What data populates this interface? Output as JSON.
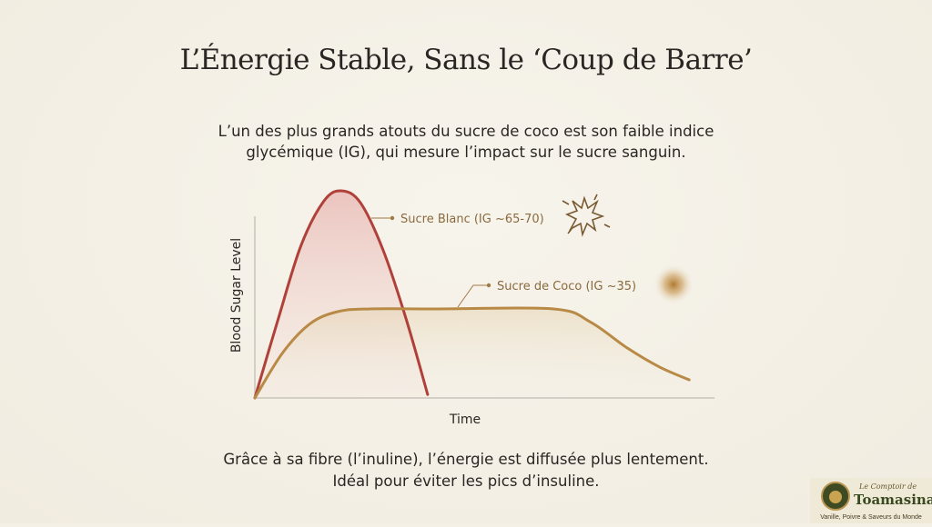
{
  "title": "L’Énergie Stable, Sans le ‘Coup de Barre’",
  "intro": [
    "L’un des plus grands atouts du sucre de coco est son faible indice",
    "glycémique (IG), qui mesure l’impact sur le sucre sanguin."
  ],
  "outro": [
    "Grâce à sa fibre (l’inuline), l’énergie est diffusée plus lentement.",
    "Idéal pour éviter les pics d’insuline."
  ],
  "chart_data": {
    "type": "line",
    "xlabel": "Time",
    "ylabel": "Blood Sugar Level",
    "xlim": [
      0,
      10
    ],
    "ylim": [
      0,
      12
    ],
    "grid": false,
    "ticks": false,
    "series": [
      {
        "name": "Sucre Blanc (IG ~65-70)",
        "color": "#b0403a",
        "fill": true,
        "x": [
          0,
          0.5,
          1,
          1.5,
          1.88,
          2.3,
          2.8,
          3.3,
          3.76
        ],
        "y": [
          0,
          4.5,
          8.8,
          11.4,
          12,
          11.3,
          8.5,
          4.5,
          0.2
        ]
      },
      {
        "name": "Sucre de Coco (IG ~35)",
        "color": "#b88a45",
        "fill": false,
        "x": [
          0,
          0.6,
          1.2,
          1.8,
          2.5,
          4,
          6.5,
          7.3,
          8.1,
          8.8,
          9.45
        ],
        "y": [
          0,
          2.6,
          4.3,
          5.0,
          5.16,
          5.16,
          5.16,
          4.4,
          2.9,
          1.8,
          1.05
        ]
      }
    ],
    "annotations": {
      "spike_icon": "starburst-icon",
      "stable_icon": "glow-circle-icon"
    }
  },
  "logo": {
    "top": "Le Comptoir de",
    "name": "Toamasina",
    "tagline": "Vanille, Poivre & Saveurs du Monde"
  }
}
